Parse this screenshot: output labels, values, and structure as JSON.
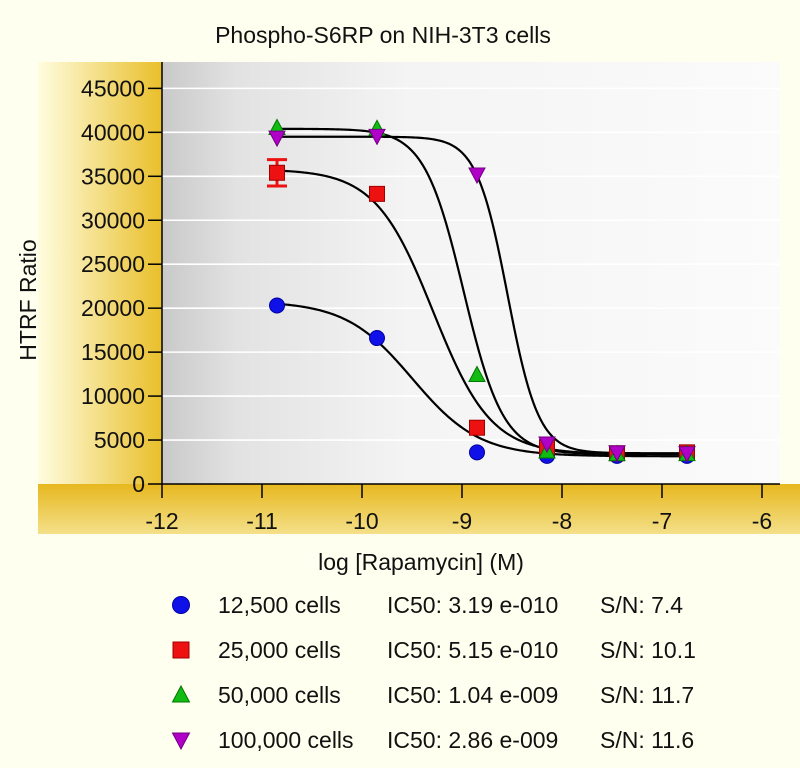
{
  "chart_data": {
    "type": "scatter",
    "title": "Phospho-S6RP on NIH-3T3 cells",
    "xlabel": "log [Rapamycin] (M)",
    "ylabel": "HTRF Ratio",
    "xlim": [
      -12,
      -5.82
    ],
    "ylim": [
      0,
      48000
    ],
    "x_ticks": [
      -12,
      -11,
      -10,
      -9,
      -8,
      -7,
      -6
    ],
    "x_tick_labels": [
      "-12",
      "-11",
      "-10",
      "-9",
      "-8",
      "-7",
      "-6"
    ],
    "y_ticks": [
      0,
      5000,
      10000,
      15000,
      20000,
      25000,
      30000,
      35000,
      40000,
      45000
    ],
    "y_tick_labels": [
      "0",
      "5000",
      "10000",
      "15000",
      "20000",
      "25000",
      "30000",
      "35000",
      "40000",
      "45000"
    ],
    "series": [
      {
        "name": "12,500 cells",
        "marker": "circle",
        "color": "#1010e8",
        "x": [
          -10.85,
          -9.85,
          -8.85,
          -8.15,
          -7.45,
          -6.75
        ],
        "y": [
          20300,
          16600,
          3600,
          3200,
          3200,
          3200
        ],
        "errors": [
          0,
          0,
          0,
          0,
          0,
          0
        ],
        "fit": {
          "top": 20800,
          "bottom": 3150,
          "logIC50": -9.496,
          "hill": 1.3
        }
      },
      {
        "name": "25,000 cells",
        "marker": "square",
        "color": "#ee1111",
        "x": [
          -10.85,
          -9.85,
          -8.85,
          -8.15,
          -7.45,
          -6.75
        ],
        "y": [
          35400,
          33000,
          6400,
          4200,
          3500,
          3600
        ],
        "errors": [
          1500,
          0,
          0,
          0,
          0,
          0
        ],
        "fit": {
          "top": 35800,
          "bottom": 3400,
          "logIC50": -9.288,
          "hill": 1.5
        }
      },
      {
        "name": "50,000 cells",
        "marker": "triangle-up",
        "color": "#11bb11",
        "x": [
          -10.85,
          -9.85,
          -8.85,
          -8.15,
          -7.45,
          -6.75
        ],
        "y": [
          40500,
          40400,
          12400,
          3700,
          3400,
          3400
        ],
        "errors": [
          0,
          0,
          0,
          0,
          0,
          0
        ],
        "fit": {
          "top": 40400,
          "bottom": 3400,
          "logIC50": -8.983,
          "hill": 2.2
        }
      },
      {
        "name": "100,000 cells",
        "marker": "triangle-down",
        "color": "#b000c8",
        "x": [
          -10.85,
          -9.85,
          -8.85,
          -8.15,
          -7.45,
          -6.75
        ],
        "y": [
          39400,
          39600,
          35200,
          4600,
          3600,
          3500
        ],
        "errors": [
          0,
          0,
          0,
          0,
          0,
          0
        ],
        "fit": {
          "top": 39500,
          "bottom": 3500,
          "logIC50": -8.544,
          "hill": 2.8
        }
      }
    ]
  },
  "legend": [
    {
      "label": "12,500 cells",
      "ic50": "IC50: 3.19 e-010",
      "sn": "S/N: 7.4"
    },
    {
      "label": "25,000 cells",
      "ic50": "IC50: 5.15 e-010",
      "sn": "S/N: 10.1"
    },
    {
      "label": "50,000 cells",
      "ic50": "IC50: 1.04 e-009",
      "sn": "S/N: 11.7"
    },
    {
      "label": "100,000 cells",
      "ic50": "IC50: 2.86 e-009",
      "sn": "S/N: 11.6"
    }
  ]
}
